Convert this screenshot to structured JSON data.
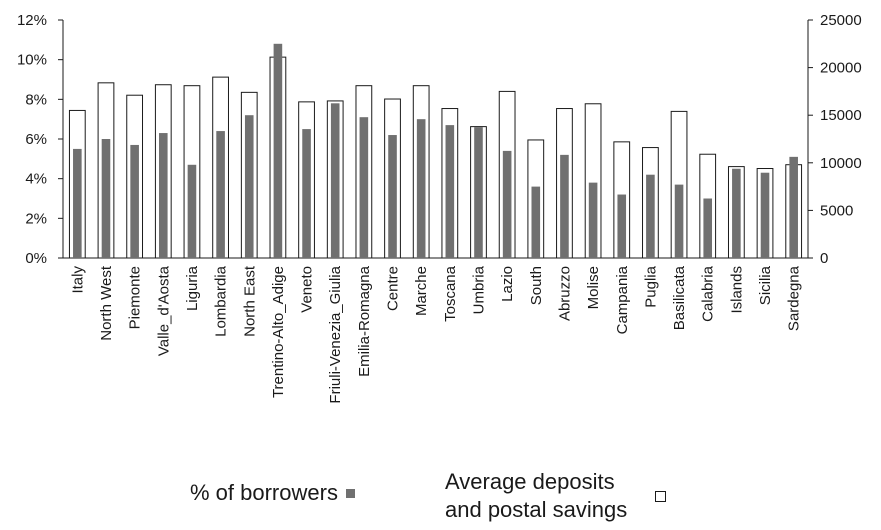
{
  "chart_data": {
    "type": "bar",
    "categories": [
      "Italy",
      "North West",
      "Piemonte",
      "Valle_d'Aosta",
      "Liguria",
      "Lombardia",
      "North East",
      "Trentino-Alto_Adige",
      "Veneto",
      "Friuli-Venezia_Giulia",
      "Emilia-Romagna",
      "Centre",
      "Marche",
      "Toscana",
      "Umbria",
      "Lazio",
      "South",
      "Abruzzo",
      "Molise",
      "Campania",
      "Puglia",
      "Basilicata",
      "Calabria",
      "Islands",
      "Sicilia",
      "Sardegna"
    ],
    "series": [
      {
        "name": "% of borrowers",
        "axis": "left",
        "style": "filled",
        "values": [
          5.5,
          6.0,
          5.7,
          6.3,
          4.7,
          6.4,
          7.2,
          10.8,
          6.5,
          7.8,
          7.1,
          6.2,
          7.0,
          6.7,
          6.6,
          5.4,
          3.6,
          5.2,
          3.8,
          3.2,
          4.2,
          3.7,
          3.0,
          4.5,
          4.3,
          5.1
        ]
      },
      {
        "name": "Average deposits and postal savings",
        "axis": "right",
        "style": "outline",
        "values": [
          15500,
          18400,
          17100,
          18200,
          18100,
          19000,
          17400,
          21100,
          16400,
          16500,
          18100,
          16700,
          18100,
          15700,
          13800,
          17500,
          12400,
          15700,
          16200,
          12200,
          11600,
          15400,
          10900,
          9600,
          9400,
          9800
        ]
      }
    ],
    "y_left": {
      "ticks": [
        "0%",
        "2%",
        "4%",
        "6%",
        "8%",
        "10%",
        "12%"
      ],
      "ylim": [
        0,
        12
      ]
    },
    "y_right": {
      "ticks": [
        "0",
        "5000",
        "10000",
        "15000",
        "20000",
        "25000"
      ],
      "ylim": [
        0,
        25000
      ]
    },
    "grid": false,
    "legend": {
      "placement": "bottom",
      "borrowers_label": "% of borrowers",
      "deposits_line1": "Average deposits",
      "deposits_line2": "and postal savings"
    },
    "colors": {
      "filled": "#707070",
      "outline": "#1a1a1a",
      "axis": "#1a1a1a"
    }
  }
}
